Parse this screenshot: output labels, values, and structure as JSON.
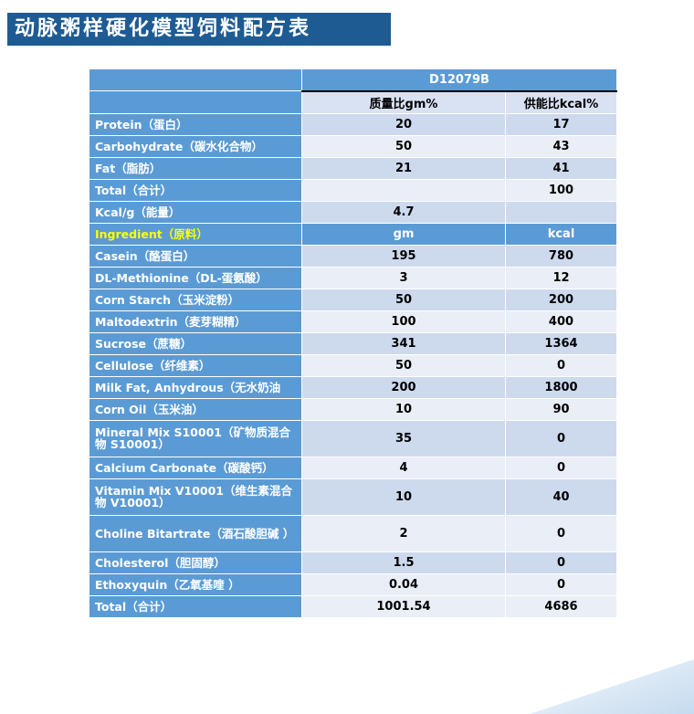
{
  "title": "动脉粥样硬化模型饲料配方表",
  "table": {
    "diet_name": "D12079B",
    "col_headers": [
      "质量比gm%",
      "供能比kcal%"
    ],
    "rows": [
      {
        "label": "Protein（蛋白）",
        "v1": "20",
        "v2": "17"
      },
      {
        "label": "Carbohydrate（碳水化合物）",
        "v1": "50",
        "v2": "43"
      },
      {
        "label": "Fat（脂肪）",
        "v1": "21",
        "v2": "41"
      },
      {
        "label": "Total（合计）",
        "v1": "",
        "v2": "100"
      },
      {
        "label": "Kcal/g（能量）",
        "v1": "4.7",
        "v2": ""
      }
    ],
    "ingredient_header": {
      "label": "Ingredient（原料）",
      "v1": "gm",
      "v2": "kcal"
    },
    "ingredients": [
      {
        "label": "Casein（酪蛋白）",
        "v1": "195",
        "v2": "780"
      },
      {
        "label": "DL-Methionine（DL-蛋氨酸）",
        "v1": "3",
        "v2": "12"
      },
      {
        "label": "Corn Starch（玉米淀粉）",
        "v1": "50",
        "v2": "200"
      },
      {
        "label": "Maltodextrin（麦芽糊精）",
        "v1": "100",
        "v2": "400"
      },
      {
        "label": "Sucrose（蔗糖）",
        "v1": "341",
        "v2": "1364"
      },
      {
        "label": "Cellulose（纤维素）",
        "v1": "50",
        "v2": "0"
      },
      {
        "label": "Milk Fat, Anhydrous（无水奶油",
        "v1": "200",
        "v2": "1800"
      },
      {
        "label": "Corn Oil（玉米油）",
        "v1": "10",
        "v2": "90"
      },
      {
        "label": "Mineral Mix S10001（矿物质混合物 S10001）",
        "v1": "35",
        "v2": "0"
      },
      {
        "label": "Calcium Carbonate（碳酸钙）",
        "v1": "4",
        "v2": "0"
      },
      {
        "label": "Vitamin Mix V10001（维生素混合物 V10001）",
        "v1": "10",
        "v2": "40"
      },
      {
        "label": "Choline Bitartrate（酒石酸胆碱 ）",
        "v1": "2",
        "v2": "0"
      },
      {
        "label": "Cholesterol（胆固醇）",
        "v1": "1.5",
        "v2": "0"
      },
      {
        "label": "Ethoxyquin（乙氧基喹 ）",
        "v1": "0.04",
        "v2": "0"
      },
      {
        "label": "Total（合计）",
        "v1": "1001.54",
        "v2": "4686"
      }
    ]
  },
  "colors": {
    "title_bg": "#1f5b93",
    "header_blue": "#5b9bd5",
    "row_dark": "#cdd9ed",
    "row_light": "#e9eef7",
    "ingredient_label": "#ffff00"
  }
}
